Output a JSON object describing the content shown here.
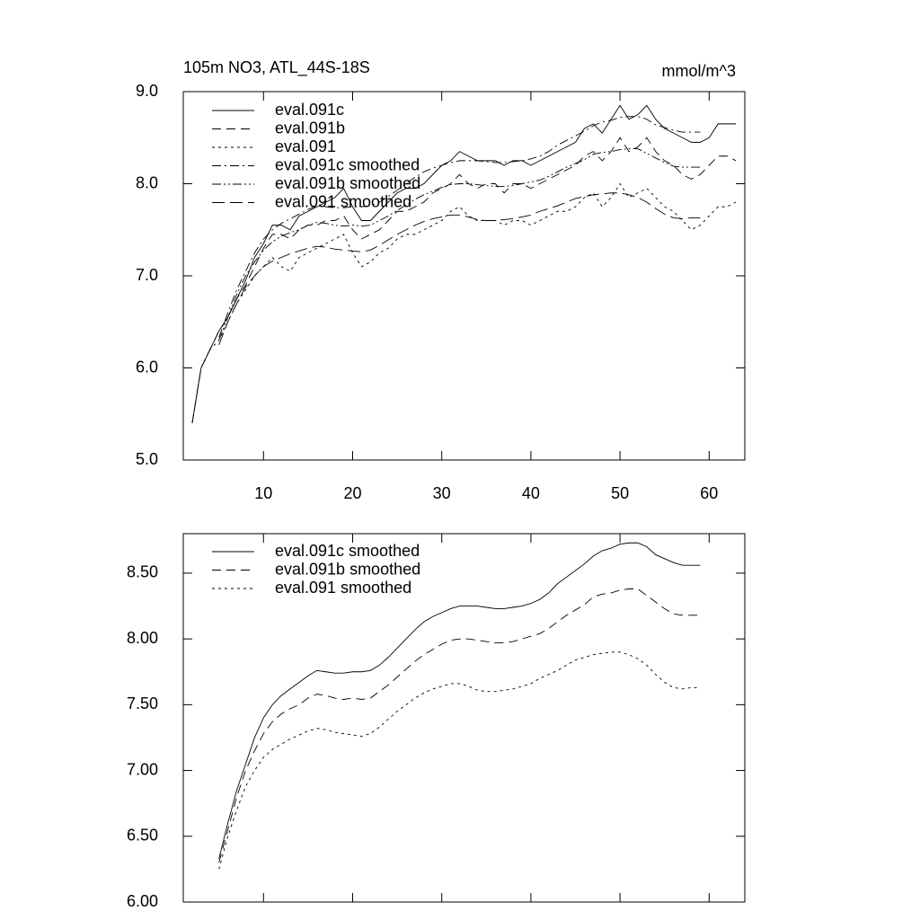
{
  "chart_data": [
    {
      "type": "line",
      "title": "105m NO3, ATL_44S-18S",
      "units": "mmol/m^3",
      "x": [
        2,
        3,
        4,
        5,
        6,
        7,
        8,
        9,
        10,
        11,
        12,
        13,
        14,
        15,
        16,
        17,
        18,
        19,
        20,
        21,
        22,
        23,
        24,
        25,
        26,
        27,
        28,
        29,
        30,
        31,
        32,
        33,
        34,
        35,
        36,
        37,
        38,
        39,
        40,
        41,
        42,
        43,
        44,
        45,
        46,
        47,
        48,
        49,
        50,
        51,
        52,
        53,
        54,
        55,
        56,
        57,
        58,
        59,
        60,
        61,
        62,
        63
      ],
      "xlim": [
        1,
        64
      ],
      "xticks": [
        10,
        20,
        30,
        40,
        50,
        60
      ],
      "xticklabels": true,
      "ylim": [
        5,
        9
      ],
      "yticks": [
        {
          "value": 5,
          "label": "5.0"
        },
        {
          "value": 6,
          "label": "6.0"
        },
        {
          "value": 7,
          "label": "7.0"
        },
        {
          "value": 8,
          "label": "8.0"
        },
        {
          "value": 9,
          "label": "9.0"
        }
      ],
      "series": [
        {
          "name": "eval.091c",
          "color": "#000000",
          "dash": "solid",
          "values": [
            5.4,
            6.0,
            6.2,
            6.4,
            6.55,
            6.75,
            6.95,
            7.2,
            7.35,
            7.55,
            7.55,
            7.5,
            7.65,
            7.7,
            7.75,
            7.8,
            7.85,
            7.95,
            7.75,
            7.6,
            7.6,
            7.7,
            7.8,
            7.9,
            7.95,
            7.95,
            8.0,
            8.1,
            8.2,
            8.25,
            8.35,
            8.3,
            8.25,
            8.25,
            8.25,
            8.2,
            8.25,
            8.25,
            8.2,
            8.25,
            8.3,
            8.35,
            8.4,
            8.45,
            8.6,
            8.65,
            8.55,
            8.7,
            8.85,
            8.7,
            8.75,
            8.85,
            8.7,
            8.6,
            8.55,
            8.5,
            8.45,
            8.45,
            8.5,
            8.65,
            8.65,
            8.65
          ]
        },
        {
          "name": "eval.091b",
          "color": "#000000",
          "dash": "dashed",
          "values": [
            5.4,
            6.0,
            6.2,
            6.4,
            6.55,
            6.75,
            6.9,
            7.1,
            7.3,
            7.45,
            7.45,
            7.4,
            7.5,
            7.55,
            7.55,
            7.6,
            7.6,
            7.65,
            7.5,
            7.4,
            7.45,
            7.5,
            7.6,
            7.7,
            7.7,
            7.75,
            7.8,
            7.9,
            7.95,
            8.0,
            8.1,
            8.0,
            7.95,
            8.0,
            8.0,
            7.9,
            8.0,
            8.0,
            7.95,
            8.0,
            8.05,
            8.1,
            8.15,
            8.2,
            8.3,
            8.35,
            8.25,
            8.35,
            8.5,
            8.35,
            8.4,
            8.5,
            8.35,
            8.25,
            8.2,
            8.1,
            8.05,
            8.1,
            8.2,
            8.3,
            8.3,
            8.25
          ]
        },
        {
          "name": "eval.091",
          "color": "#000000",
          "dash": "dotted",
          "values": [
            5.4,
            6.0,
            6.2,
            6.3,
            6.5,
            6.7,
            6.85,
            7.0,
            7.1,
            7.2,
            7.1,
            7.05,
            7.2,
            7.25,
            7.3,
            7.35,
            7.4,
            7.45,
            7.25,
            7.1,
            7.15,
            7.25,
            7.3,
            7.4,
            7.45,
            7.45,
            7.5,
            7.55,
            7.6,
            7.7,
            7.75,
            7.65,
            7.6,
            7.6,
            7.6,
            7.55,
            7.6,
            7.6,
            7.55,
            7.6,
            7.65,
            7.7,
            7.7,
            7.75,
            7.85,
            7.9,
            7.75,
            7.85,
            8.0,
            7.85,
            7.9,
            7.95,
            7.85,
            7.75,
            7.7,
            7.6,
            7.5,
            7.55,
            7.65,
            7.75,
            7.75,
            7.8
          ]
        },
        {
          "name": "eval.091c smoothed",
          "color": "#000000",
          "dash": "dashdot",
          "values": [
            null,
            null,
            null,
            6.33,
            6.6,
            6.85,
            7.05,
            7.25,
            7.4,
            7.5,
            7.57,
            7.62,
            7.67,
            7.72,
            7.76,
            7.75,
            7.74,
            7.74,
            7.75,
            7.75,
            7.76,
            7.8,
            7.86,
            7.93,
            8.0,
            8.07,
            8.13,
            8.17,
            8.2,
            8.23,
            8.25,
            8.25,
            8.25,
            8.24,
            8.23,
            8.23,
            8.24,
            8.25,
            8.27,
            8.3,
            8.35,
            8.42,
            8.47,
            8.52,
            8.57,
            8.63,
            8.67,
            8.69,
            8.72,
            8.73,
            8.73,
            8.7,
            8.64,
            8.61,
            8.58,
            8.56,
            8.56,
            8.56,
            null,
            null,
            null,
            null
          ]
        },
        {
          "name": "eval.091b smoothed",
          "color": "#000000",
          "dash": "dashdotdot",
          "values": [
            null,
            null,
            null,
            6.3,
            6.55,
            6.8,
            7.0,
            7.15,
            7.28,
            7.37,
            7.43,
            7.47,
            7.5,
            7.55,
            7.58,
            7.57,
            7.55,
            7.54,
            7.55,
            7.54,
            7.55,
            7.6,
            7.65,
            7.71,
            7.77,
            7.83,
            7.88,
            7.92,
            7.96,
            7.99,
            8.0,
            8.0,
            7.99,
            7.98,
            7.97,
            7.97,
            7.98,
            8.0,
            8.02,
            8.04,
            8.08,
            8.13,
            8.18,
            8.22,
            8.26,
            8.32,
            8.34,
            8.35,
            8.37,
            8.38,
            8.38,
            8.33,
            8.28,
            8.23,
            8.19,
            8.18,
            8.18,
            8.18,
            null,
            null,
            null,
            null
          ]
        },
        {
          "name": "eval.091 smoothed",
          "color": "#000000",
          "dash": "longdash",
          "values": [
            null,
            null,
            null,
            6.25,
            6.5,
            6.7,
            6.88,
            7.0,
            7.1,
            7.16,
            7.2,
            7.24,
            7.27,
            7.3,
            7.32,
            7.31,
            7.29,
            7.28,
            7.27,
            7.26,
            7.28,
            7.33,
            7.39,
            7.45,
            7.5,
            7.55,
            7.59,
            7.62,
            7.64,
            7.66,
            7.66,
            7.64,
            7.61,
            7.6,
            7.6,
            7.61,
            7.62,
            7.64,
            7.66,
            7.7,
            7.73,
            7.76,
            7.8,
            7.84,
            7.86,
            7.88,
            7.89,
            7.9,
            7.9,
            7.88,
            7.85,
            7.8,
            7.73,
            7.67,
            7.63,
            7.62,
            7.63,
            7.63,
            null,
            null,
            null,
            null
          ]
        }
      ]
    },
    {
      "type": "line",
      "x": [
        5,
        6,
        7,
        8,
        9,
        10,
        11,
        12,
        13,
        14,
        15,
        16,
        17,
        18,
        19,
        20,
        21,
        22,
        23,
        24,
        25,
        26,
        27,
        28,
        29,
        30,
        31,
        32,
        33,
        34,
        35,
        36,
        37,
        38,
        39,
        40,
        41,
        42,
        43,
        44,
        45,
        46,
        47,
        48,
        49,
        50,
        51,
        52,
        53,
        54,
        55,
        56,
        57,
        58,
        59
      ],
      "xlim": [
        1,
        64
      ],
      "xticks": [
        10,
        20,
        30,
        40,
        50,
        60
      ],
      "xticklabels": false,
      "ylim": [
        6,
        8.8
      ],
      "yticks": [
        {
          "value": 6,
          "label": "6.00"
        },
        {
          "value": 6.5,
          "label": "6.50"
        },
        {
          "value": 7,
          "label": "7.00"
        },
        {
          "value": 7.5,
          "label": "7.50"
        },
        {
          "value": 8,
          "label": "8.00"
        },
        {
          "value": 8.5,
          "label": "8.50"
        }
      ],
      "series": [
        {
          "name": "eval.091c smoothed",
          "color": "#000000",
          "dash": "solid",
          "values": [
            6.33,
            6.6,
            6.85,
            7.05,
            7.25,
            7.4,
            7.5,
            7.57,
            7.62,
            7.67,
            7.72,
            7.76,
            7.75,
            7.74,
            7.74,
            7.75,
            7.75,
            7.76,
            7.8,
            7.86,
            7.93,
            8.0,
            8.07,
            8.13,
            8.17,
            8.2,
            8.23,
            8.25,
            8.25,
            8.25,
            8.24,
            8.23,
            8.23,
            8.24,
            8.25,
            8.27,
            8.3,
            8.35,
            8.42,
            8.47,
            8.52,
            8.57,
            8.63,
            8.67,
            8.69,
            8.72,
            8.73,
            8.73,
            8.7,
            8.64,
            8.61,
            8.58,
            8.56,
            8.56,
            8.56
          ]
        },
        {
          "name": "eval.091b smoothed",
          "color": "#000000",
          "dash": "dashed",
          "values": [
            6.3,
            6.55,
            6.8,
            7.0,
            7.15,
            7.28,
            7.37,
            7.43,
            7.47,
            7.5,
            7.55,
            7.58,
            7.57,
            7.55,
            7.54,
            7.55,
            7.54,
            7.55,
            7.6,
            7.65,
            7.71,
            7.77,
            7.83,
            7.88,
            7.92,
            7.96,
            7.99,
            8.0,
            8.0,
            7.99,
            7.98,
            7.97,
            7.97,
            7.98,
            8.0,
            8.02,
            8.04,
            8.08,
            8.13,
            8.18,
            8.22,
            8.26,
            8.32,
            8.34,
            8.35,
            8.37,
            8.38,
            8.38,
            8.33,
            8.28,
            8.23,
            8.19,
            8.18,
            8.18,
            8.18
          ]
        },
        {
          "name": "eval.091 smoothed",
          "color": "#000000",
          "dash": "dotted",
          "values": [
            6.25,
            6.5,
            6.7,
            6.88,
            7.0,
            7.1,
            7.16,
            7.2,
            7.24,
            7.27,
            7.3,
            7.32,
            7.31,
            7.29,
            7.28,
            7.27,
            7.26,
            7.28,
            7.33,
            7.39,
            7.45,
            7.5,
            7.55,
            7.59,
            7.62,
            7.64,
            7.66,
            7.66,
            7.64,
            7.61,
            7.6,
            7.6,
            7.61,
            7.62,
            7.64,
            7.66,
            7.7,
            7.73,
            7.76,
            7.8,
            7.84,
            7.86,
            7.88,
            7.89,
            7.9,
            7.9,
            7.88,
            7.85,
            7.8,
            7.73,
            7.67,
            7.63,
            7.62,
            7.63,
            7.63
          ]
        }
      ]
    }
  ]
}
